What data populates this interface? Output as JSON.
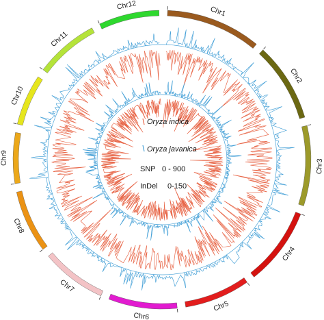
{
  "chart_data": {
    "type": "circos",
    "chromosomes": [
      {
        "name": "Chr1",
        "size": 43.3,
        "color": "#9a5a1e"
      },
      {
        "name": "Chr2",
        "size": 35.9,
        "color": "#6b6812"
      },
      {
        "name": "Chr3",
        "size": 36.4,
        "color": "#9c9a2a"
      },
      {
        "name": "Chr4",
        "size": 35.5,
        "color": "#d4120f"
      },
      {
        "name": "Chr5",
        "size": 29.9,
        "color": "#e21d1d"
      },
      {
        "name": "Chr6",
        "size": 31.2,
        "color": "#e21bd0"
      },
      {
        "name": "Chr7",
        "size": 29.7,
        "color": "#f3c3c6"
      },
      {
        "name": "Chr8",
        "size": 28.4,
        "color": "#eb9214"
      },
      {
        "name": "Chr9",
        "size": 23.0,
        "color": "#eca81a"
      },
      {
        "name": "Chr10",
        "size": 23.2,
        "color": "#e6e61d"
      },
      {
        "name": "Chr11",
        "size": 29.0,
        "color": "#b5e33a"
      },
      {
        "name": "Chr12",
        "size": 27.5,
        "color": "#2ed82e"
      }
    ],
    "tracks": [
      {
        "variety": "Oryza indica",
        "ring": "outer"
      },
      {
        "variety": "Oryza javanica",
        "ring": "inner"
      }
    ],
    "series_colors": {
      "snp": "#e8684a",
      "indel": "#4aa3d8"
    },
    "legend": {
      "items": [
        {
          "label": "Oryza indica",
          "color": "#e8684a"
        },
        {
          "label": "Oryza javanica",
          "color": "#4aa3d8"
        }
      ],
      "snp_label": "SNP",
      "snp_range": "0 - 900",
      "indel_label": "InDel",
      "indel_range": "0-150"
    }
  }
}
